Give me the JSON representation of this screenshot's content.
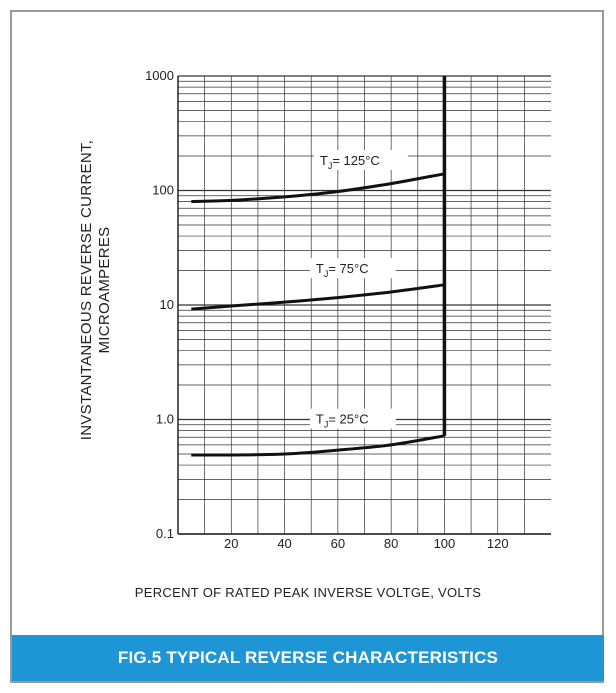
{
  "chart_data": {
    "type": "line",
    "xlabel": "PERCENT OF RATED PEAK INVERSE VOLTGE, VOLTS",
    "ylabel": "INVSTANTANEOUS REVERSE CURRENT,\nMICROAMPERES",
    "y_scale": "log",
    "ylim": [
      0.1,
      1000
    ],
    "xlim": [
      0,
      140
    ],
    "grid": true,
    "x_ticks": [
      "20",
      "40",
      "60",
      "80",
      "100",
      "120"
    ],
    "x_tick_values": [
      20,
      40,
      60,
      80,
      100,
      120
    ],
    "y_ticks": [
      "0.1",
      "1.0",
      "10",
      "100",
      "1000"
    ],
    "y_tick_values": [
      0.1,
      1,
      10,
      100,
      1000
    ],
    "vertical_limit_x": 100,
    "series": [
      {
        "temp": "125°C",
        "x": [
          5,
          20,
          40,
          60,
          80,
          100
        ],
        "y": [
          80,
          82,
          88,
          98,
          115,
          140
        ]
      },
      {
        "temp": "75°C",
        "x": [
          5,
          20,
          40,
          60,
          80,
          100
        ],
        "y": [
          9.2,
          9.8,
          10.6,
          11.6,
          13,
          15
        ]
      },
      {
        "temp": "25°C",
        "x": [
          5,
          20,
          40,
          60,
          80,
          100
        ],
        "y": [
          0.49,
          0.49,
          0.5,
          0.54,
          0.6,
          0.72
        ]
      }
    ]
  },
  "caption": "FIG.5 TYPICAL REVERSE CHARACTERISTICS",
  "colors": {
    "caption_bg": "#1e96d6",
    "frame": "#9a9a9a",
    "curve": "#111111"
  }
}
